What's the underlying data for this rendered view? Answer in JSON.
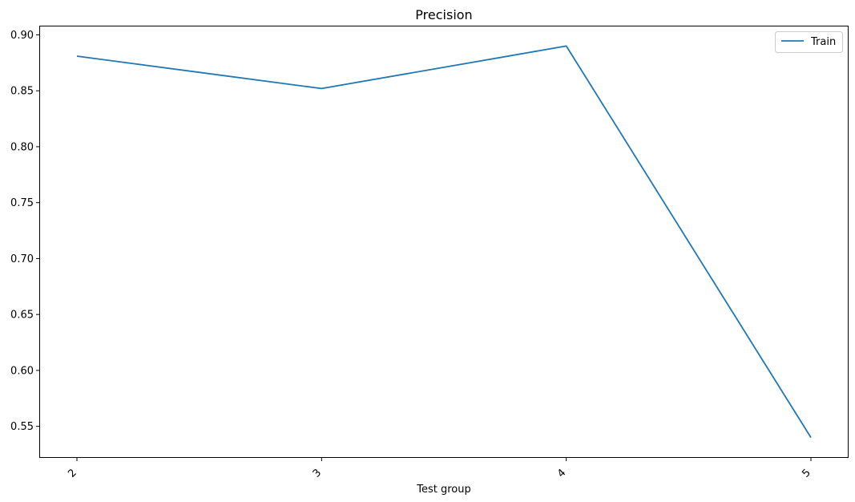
{
  "chart_data": {
    "type": "line",
    "title": "Precision",
    "xlabel": "Test group",
    "ylabel": "",
    "categories": [
      "2",
      "3",
      "4",
      "5"
    ],
    "series": [
      {
        "name": "Train",
        "color": "#1f77b4",
        "values": [
          0.881,
          0.852,
          0.89,
          0.54
        ]
      }
    ],
    "ylim": [
      0.5225,
      0.9075
    ],
    "yticks": [
      "0.55",
      "0.60",
      "0.65",
      "0.70",
      "0.75",
      "0.80",
      "0.85",
      "0.90"
    ],
    "grid": false,
    "legend_position": "top-right"
  }
}
